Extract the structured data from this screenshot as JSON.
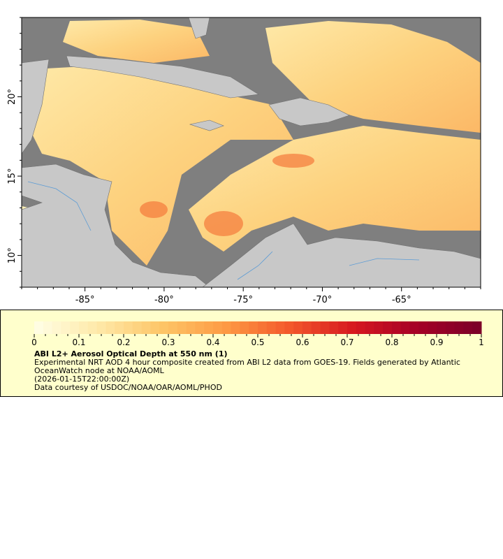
{
  "map": {
    "lon_range": [
      -89,
      -60
    ],
    "lat_range": [
      8,
      25
    ],
    "lon_ticks": [
      -85,
      -80,
      -75,
      -70,
      -65
    ],
    "lon_labels": [
      "-85°",
      "-80°",
      "-75°",
      "-70°",
      "-65°"
    ],
    "lat_ticks": [
      10,
      15,
      20
    ],
    "lat_labels": [
      "10°",
      "15°",
      "20°"
    ],
    "colors": {
      "cloud_mask": "#7f7f7f",
      "land": "#c8c8c8",
      "rivers": "#5b9bd5",
      "borders": "#707070"
    }
  },
  "legend": {
    "colorbar_ticks": [
      "0",
      "0.1",
      "0.2",
      "0.3",
      "0.4",
      "0.5",
      "0.6",
      "0.7",
      "0.8",
      "0.9",
      "1"
    ],
    "colorbar_range": [
      0,
      1
    ],
    "colormap_stops": [
      "#ffffe6",
      "#fee9a8",
      "#fdc567",
      "#fd9a44",
      "#f3582b",
      "#d6181f",
      "#a50026",
      "#7a0028"
    ],
    "title": "ABI L2+ Aerosol Optical Depth at 550 nm (1)",
    "line1": "Experimental NRT AOD 4 hour composite created from ABI L2 data from GOES-19. Fields generated by Atlantic",
    "line2": "OceanWatch node at NOAA/AOML",
    "time": "(2026-01-15T22:00:00Z)",
    "credit": "Data courtesy of USDOC/NOAA/OAR/AOML/PHOD"
  }
}
